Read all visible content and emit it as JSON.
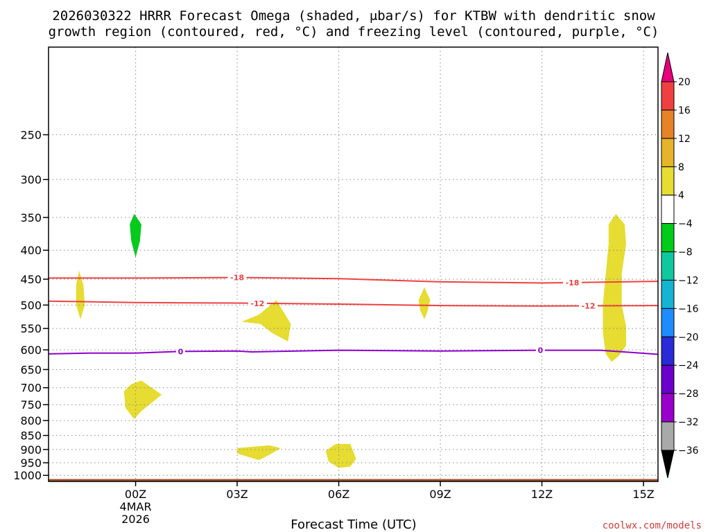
{
  "title_line1": "2026030322 HRRR Forecast Omega (shaded, μbar/s) for KTBW with dendritic snow",
  "title_line2": "growth region (contoured, red, °C) and freezing level (contoured, purple, °C)",
  "credit": "coolwx.com/models",
  "chart_data": {
    "type": "contour",
    "xlabel": "Forecast Time (UTC)",
    "ylabel": "",
    "x_units": "hours from 2026-03-03 22Z",
    "xlim": [
      0,
      42
    ],
    "ylim_hPa": [
      1025,
      175
    ],
    "y_scale": "log-pressure",
    "grid": true,
    "x_ticks": [
      {
        "x": 6,
        "label": "00Z",
        "sub1": "4MAR",
        "sub2": "2026"
      },
      {
        "x": 13,
        "label": "03Z",
        "sub1": "",
        "sub2": ""
      },
      {
        "x": 20,
        "label": "06Z",
        "sub1": "",
        "sub2": ""
      },
      {
        "x": 27,
        "label": "09Z",
        "sub1": "",
        "sub2": ""
      },
      {
        "x": 34,
        "label": "12Z",
        "sub1": "",
        "sub2": ""
      },
      {
        "x": 41,
        "label": "15Z",
        "sub1": "",
        "sub2": ""
      }
    ],
    "y_ticks": [
      250,
      300,
      350,
      400,
      450,
      500,
      550,
      600,
      650,
      700,
      750,
      800,
      850,
      900,
      950,
      1000
    ],
    "colorbar": {
      "levels": [
        -36,
        -32,
        -28,
        -24,
        -20,
        -16,
        -12,
        -8,
        -4,
        4,
        8,
        12,
        16,
        20
      ],
      "colors": [
        "#000000",
        "#a9a9a9",
        "#9900cc",
        "#6a00cc",
        "#2a2ad6",
        "#1e8cff",
        "#14b4d2",
        "#10c8a0",
        "#00cc1a",
        "#ffffff",
        "#e6dc32",
        "#e6b428",
        "#e68228",
        "#ee4040",
        "#e6007a"
      ]
    },
    "shaded_regions": [
      {
        "omega_class": "<-4",
        "color": "#00cc1a",
        "points": [
          [
            5.9,
            345
          ],
          [
            6.4,
            360
          ],
          [
            6.3,
            385
          ],
          [
            6.0,
            412
          ],
          [
            5.7,
            385
          ],
          [
            5.6,
            360
          ]
        ]
      },
      {
        "omega_class": ">4",
        "color": "#e6dc32",
        "points": [
          [
            2.1,
            435
          ],
          [
            2.4,
            460
          ],
          [
            2.5,
            500
          ],
          [
            2.2,
            530
          ],
          [
            1.9,
            500
          ],
          [
            1.9,
            460
          ]
        ]
      },
      {
        "omega_class": ">4",
        "color": "#e6dc32",
        "points": [
          [
            5.7,
            690
          ],
          [
            6.4,
            680
          ],
          [
            7.8,
            720
          ],
          [
            6.4,
            770
          ],
          [
            5.9,
            795
          ],
          [
            5.3,
            760
          ],
          [
            5.2,
            710
          ]
        ]
      },
      {
        "omega_class": ">4",
        "color": "#e6dc32",
        "points": [
          [
            15.7,
            490
          ],
          [
            16.7,
            540
          ],
          [
            16.5,
            580
          ],
          [
            15.4,
            560
          ],
          [
            14.6,
            540
          ],
          [
            13.3,
            535
          ],
          [
            14.5,
            520
          ]
        ]
      },
      {
        "omega_class": ">4",
        "color": "#e6dc32",
        "points": [
          [
            13.0,
            895
          ],
          [
            15.2,
            885
          ],
          [
            16.0,
            895
          ],
          [
            15.2,
            920
          ],
          [
            14.5,
            940
          ],
          [
            13.9,
            930
          ],
          [
            13.0,
            915
          ]
        ]
      },
      {
        "omega_class": ">4",
        "color": "#e6dc32",
        "points": [
          [
            19.8,
            880
          ],
          [
            20.8,
            880
          ],
          [
            21.2,
            935
          ],
          [
            20.8,
            965
          ],
          [
            20.0,
            970
          ],
          [
            19.3,
            945
          ],
          [
            19.1,
            905
          ]
        ]
      },
      {
        "omega_class": ">4",
        "color": "#e6dc32",
        "points": [
          [
            25.9,
            465
          ],
          [
            26.3,
            490
          ],
          [
            26.1,
            515
          ],
          [
            25.9,
            530
          ],
          [
            25.6,
            510
          ],
          [
            25.5,
            490
          ]
        ]
      },
      {
        "omega_class": ">4",
        "color": "#e6dc32",
        "points": [
          [
            39.1,
            345
          ],
          [
            39.7,
            360
          ],
          [
            39.8,
            390
          ],
          [
            39.5,
            440
          ],
          [
            39.5,
            500
          ],
          [
            39.8,
            545
          ],
          [
            39.8,
            590
          ],
          [
            39.3,
            615
          ],
          [
            38.8,
            630
          ],
          [
            38.4,
            610
          ],
          [
            38.2,
            560
          ],
          [
            38.2,
            500
          ],
          [
            38.4,
            440
          ],
          [
            38.6,
            390
          ],
          [
            38.6,
            360
          ]
        ]
      }
    ],
    "contours": [
      {
        "name": "-18",
        "color": "#ee4040",
        "label_x": [
          13.0,
          36.1
        ],
        "points": [
          [
            0,
            448
          ],
          [
            6,
            448
          ],
          [
            13,
            447
          ],
          [
            20,
            449
          ],
          [
            27,
            455
          ],
          [
            34,
            457
          ],
          [
            42,
            454
          ]
        ]
      },
      {
        "name": "-12",
        "color": "#ee4040",
        "label_x": [
          14.4,
          37.2
        ],
        "points": [
          [
            0,
            492
          ],
          [
            6,
            495
          ],
          [
            13,
            496
          ],
          [
            20,
            498
          ],
          [
            27,
            501
          ],
          [
            34,
            502
          ],
          [
            42,
            501
          ]
        ]
      },
      {
        "name": "0",
        "color": "#8c00cc",
        "label_x": [
          9.1,
          33.9
        ],
        "points": [
          [
            0,
            610
          ],
          [
            3,
            608
          ],
          [
            6,
            608
          ],
          [
            9,
            604
          ],
          [
            13,
            603
          ],
          [
            14,
            605
          ],
          [
            20,
            601
          ],
          [
            27,
            603
          ],
          [
            34,
            601
          ],
          [
            38,
            601
          ],
          [
            42,
            611
          ]
        ]
      }
    ],
    "ground": {
      "color": "#a0522d",
      "top_hPa": 1015
    }
  }
}
